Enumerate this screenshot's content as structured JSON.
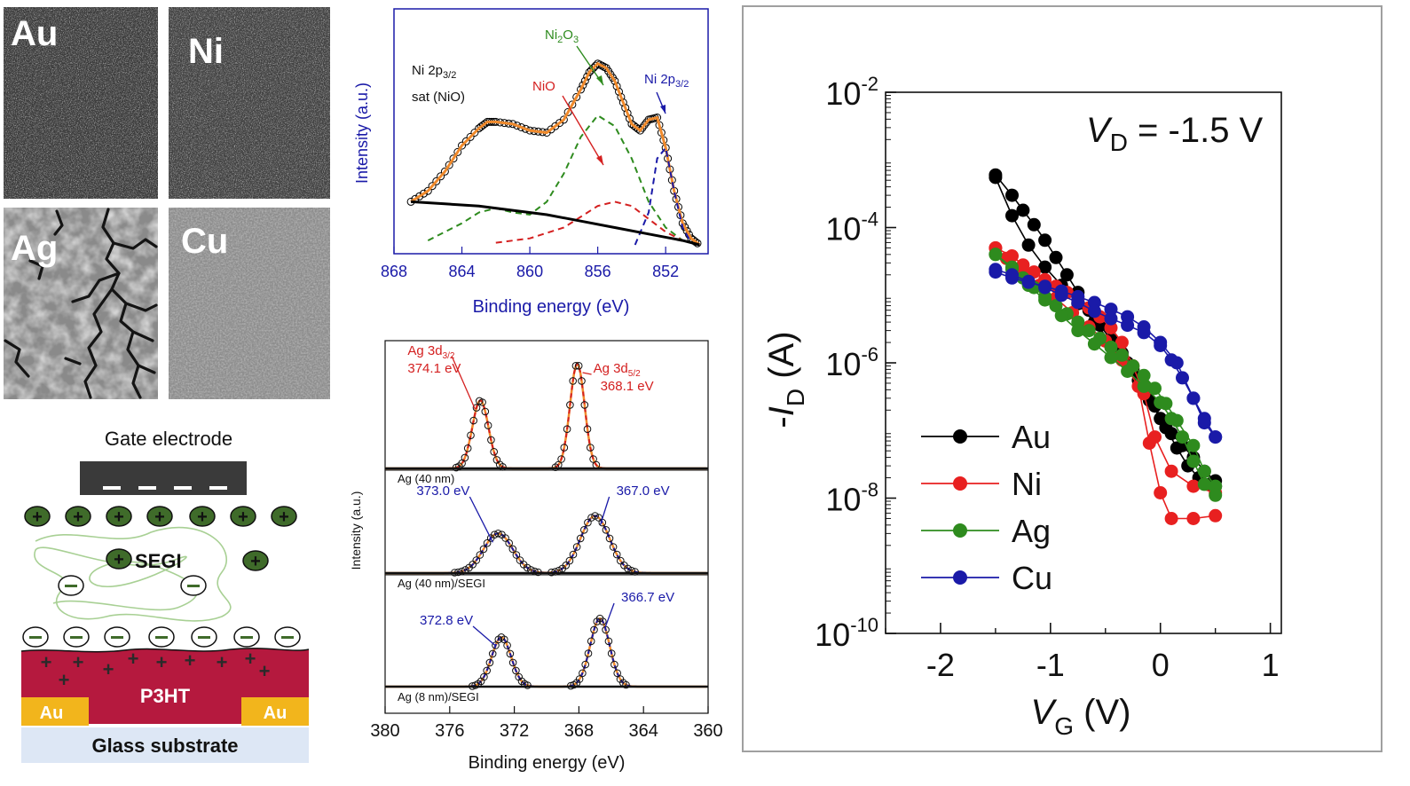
{
  "sem_panels": [
    {
      "label": "Au"
    },
    {
      "label": "Ni"
    },
    {
      "label": "Ag"
    },
    {
      "label": "Cu"
    }
  ],
  "device": {
    "gate_label": "Gate electrode",
    "segi_label": "SEGI",
    "semiconductor_label": "P3HT",
    "contact_left": "Au",
    "contact_right": "Au",
    "substrate_label": "Glass substrate",
    "plus_symbol": "+",
    "minus_symbol": "−",
    "colors": {
      "semiconductor": "#b5193e",
      "contact": "#f2b51c",
      "substrate": "#dde7f5",
      "cation": "#3f6b2a",
      "gate": "#3a3a3a"
    }
  },
  "chart_data": [
    {
      "type": "line",
      "title": "",
      "xlabel": "Binding energy (eV)",
      "ylabel": "Intensity (a.u.)",
      "x_reversed": true,
      "xlim": [
        868,
        849.5
      ],
      "xticks": [
        "868",
        "864",
        "860",
        "856",
        "852"
      ],
      "annotations": [
        {
          "text": "Ni 2p",
          "sub": "3/2",
          "color": "#000000"
        },
        {
          "text": "sat (NiO)",
          "color": "#000000"
        },
        {
          "text": "Ni",
          "sub": "2",
          "text2": "O",
          "sub2": "3",
          "color": "#2e8b1e"
        },
        {
          "text": "NiO",
          "color": "#d42020"
        },
        {
          "text": "Ni 2p",
          "sub": "3/2",
          "color": "#1a1aa8"
        }
      ],
      "series": [
        {
          "role": "data",
          "color": "#000000",
          "x": [
            867,
            866,
            865,
            864,
            863,
            862.5,
            862,
            861,
            860,
            859,
            858,
            857,
            856.5,
            856,
            855.5,
            855,
            854.5,
            854,
            853.5,
            853,
            852.5,
            852,
            851.5,
            851,
            850.5,
            850
          ],
          "y": [
            0.2,
            0.25,
            0.34,
            0.46,
            0.54,
            0.57,
            0.57,
            0.56,
            0.53,
            0.52,
            0.58,
            0.72,
            0.8,
            0.84,
            0.82,
            0.76,
            0.66,
            0.56,
            0.53,
            0.58,
            0.59,
            0.45,
            0.25,
            0.1,
            0.03,
            0.0
          ]
        },
        {
          "role": "fit",
          "color": "#f08a2c",
          "x": [
            867,
            866,
            865,
            864,
            863,
            862.5,
            862,
            861,
            860,
            859,
            858,
            857,
            856.5,
            856,
            855.5,
            855,
            854.5,
            854,
            853.5,
            853,
            852.5,
            852,
            851.5,
            851,
            850.5,
            850
          ],
          "y": [
            0.2,
            0.25,
            0.34,
            0.46,
            0.54,
            0.57,
            0.57,
            0.56,
            0.53,
            0.52,
            0.58,
            0.72,
            0.8,
            0.84,
            0.82,
            0.76,
            0.66,
            0.56,
            0.53,
            0.58,
            0.59,
            0.45,
            0.25,
            0.1,
            0.03,
            0.0
          ]
        },
        {
          "role": "component",
          "color": "#2e8b1e",
          "x": [
            866,
            864,
            863,
            862,
            861,
            860,
            859,
            858,
            857,
            856,
            855,
            854,
            853,
            852,
            851
          ],
          "y": [
            0.02,
            0.1,
            0.15,
            0.17,
            0.15,
            0.14,
            0.2,
            0.33,
            0.5,
            0.6,
            0.55,
            0.4,
            0.2,
            0.08,
            0.02
          ]
        },
        {
          "role": "component",
          "color": "#d42020",
          "x": [
            862,
            860,
            858,
            857,
            856,
            855,
            854,
            853,
            852,
            851,
            850
          ],
          "y": [
            0.01,
            0.03,
            0.08,
            0.13,
            0.18,
            0.2,
            0.18,
            0.12,
            0.06,
            0.02,
            0.0
          ]
        },
        {
          "role": "component",
          "color": "#1a1aa8",
          "x": [
            853.8,
            853,
            852.5,
            852,
            851.5,
            851,
            850.5
          ],
          "y": [
            0.0,
            0.15,
            0.4,
            0.45,
            0.25,
            0.08,
            0.01
          ]
        },
        {
          "role": "background",
          "color": "#000000",
          "x": [
            867,
            865,
            863,
            861,
            859,
            857,
            855,
            853,
            851,
            850
          ],
          "y": [
            0.2,
            0.19,
            0.18,
            0.16,
            0.14,
            0.11,
            0.08,
            0.05,
            0.02,
            0.0
          ]
        }
      ]
    },
    {
      "type": "line",
      "title": "",
      "xlabel": "Binding energy (eV)",
      "ylabel": "Intensity (a.u.)",
      "x_reversed": true,
      "xlim": [
        380,
        360
      ],
      "xticks": [
        "380",
        "376",
        "372",
        "368",
        "364",
        "360"
      ],
      "panels": [
        {
          "sample": "Ag (40 nm)",
          "peak_color": "#d42020",
          "peaks": [
            {
              "pos": 374.1,
              "height": 0.65,
              "width": 0.5,
              "label": "Ag 3d",
              "sub": "3/2",
              "energy": "374.1 eV"
            },
            {
              "pos": 368.1,
              "height": 1.0,
              "width": 0.45,
              "label": "Ag 3d",
              "sub": "5/2",
              "energy": "368.1 eV"
            }
          ]
        },
        {
          "sample": "Ag (40 nm)/SEGI",
          "peak_color": "#1a1aa8",
          "peaks": [
            {
              "pos": 373.0,
              "height": 0.52,
              "width": 0.9,
              "label": "",
              "energy": "373.0 eV"
            },
            {
              "pos": 367.0,
              "height": 0.75,
              "width": 0.9,
              "label": "",
              "energy": "367.0 eV"
            }
          ]
        },
        {
          "sample": "Ag (8 nm)/SEGI",
          "peak_color": "#1a1aa8",
          "peaks": [
            {
              "pos": 372.8,
              "height": 0.58,
              "width": 0.6,
              "label": "",
              "energy": "372.8 eV"
            },
            {
              "pos": 366.7,
              "height": 0.8,
              "width": 0.6,
              "label": "",
              "energy": "366.7 eV"
            }
          ]
        }
      ]
    },
    {
      "type": "line",
      "title": "",
      "xlabel_var": "V",
      "xlabel_sub": "G",
      "xlabel_unit": " (V)",
      "ylabel_prefix": "-",
      "ylabel_var": "I",
      "ylabel_sub": "D",
      "ylabel_unit": " (A)",
      "annotation_var": "V",
      "annotation_sub": "D",
      "annotation_rest": " = -1.5 V",
      "xlim": [
        -2.5,
        1.1
      ],
      "xticks": [
        "-2",
        "-1",
        "0",
        "1"
      ],
      "y_scale": "log",
      "ylim_exp": [
        -10,
        -2
      ],
      "ytick_base": "10",
      "ytick_exps": [
        "-10",
        "-8",
        "-6",
        "-4",
        "-2"
      ],
      "legend_position": "lower-left",
      "series": [
        {
          "name": "Au",
          "color": "#000000",
          "forward": {
            "x": [
              -1.5,
              -1.35,
              -1.25,
              -1.15,
              -1.05,
              -0.95,
              -0.85,
              -0.75,
              -0.65,
              -0.55,
              -0.45,
              -0.35,
              -0.25,
              -0.15,
              -0.05,
              0.05,
              0.15,
              0.25,
              0.35,
              0.45,
              0.5
            ],
            "y": [
              0.0006,
              0.0003,
              0.00018,
              0.00011,
              6.5e-05,
              3.6e-05,
              2e-05,
              1.1e-05,
              6e-06,
              3.6e-06,
              2.2e-06,
              1.4e-06,
              8e-07,
              4.5e-07,
              2.3e-07,
              1.1e-07,
              5.5e-08,
              3e-08,
              2e-08,
              1.6e-08,
              1.5e-08
            ]
          },
          "reverse": {
            "x": [
              0.5,
              0.4,
              0.3,
              0.2,
              0.1,
              0.0,
              -0.1,
              -0.2,
              -0.3,
              -0.45,
              -0.6,
              -0.75,
              -0.9,
              -1.05,
              -1.2,
              -1.35,
              -1.5
            ],
            "y": [
              1.8e-08,
              2.5e-08,
              4e-08,
              6e-08,
              9e-08,
              1.5e-07,
              2.8e-07,
              5.5e-07,
              1e-06,
              2e-06,
              4e-06,
              7.5e-06,
              1.4e-05,
              2.6e-05,
              5.5e-05,
              0.00015,
              0.00055
            ]
          }
        },
        {
          "name": "Ni",
          "color": "#e82020",
          "forward": {
            "x": [
              -1.5,
              -1.35,
              -1.25,
              -1.15,
              -1.05,
              -0.95,
              -0.85,
              -0.75,
              -0.65,
              -0.55,
              -0.45,
              -0.35,
              -0.25,
              -0.15,
              -0.05,
              0.1,
              0.3,
              0.5
            ],
            "y": [
              5e-05,
              3.8e-05,
              2.8e-05,
              2.2e-05,
              1.7e-05,
              1.35e-05,
              1.1e-05,
              8.5e-06,
              6.5e-06,
              4.8e-06,
              3.3e-06,
              2e-06,
              9e-07,
              3.5e-07,
              8e-08,
              2.5e-08,
              1.5e-08,
              1.2e-08
            ]
          },
          "reverse": {
            "x": [
              0.5,
              0.3,
              0.1,
              0.0,
              -0.1,
              -0.2,
              -0.35,
              -0.5,
              -0.65,
              -0.8,
              -0.95,
              -1.1,
              -1.25,
              -1.4,
              -1.5
            ],
            "y": [
              5.5e-09,
              5e-09,
              5e-09,
              1.2e-08,
              6.5e-08,
              4.5e-07,
              1.1e-06,
              2.1e-06,
              3.4e-06,
              5.5e-06,
              9e-06,
              1.4e-05,
              2.2e-05,
              3.5e-05,
              5e-05
            ]
          }
        },
        {
          "name": "Ag",
          "color": "#2e8b1e",
          "forward": {
            "x": [
              -1.5,
              -1.35,
              -1.25,
              -1.15,
              -1.05,
              -0.95,
              -0.85,
              -0.75,
              -0.65,
              -0.55,
              -0.45,
              -0.35,
              -0.25,
              -0.15,
              -0.05,
              0.05,
              0.15,
              0.3,
              0.4,
              0.5
            ],
            "y": [
              4e-05,
              2.6e-05,
              1.8e-05,
              1.3e-05,
              9.5e-06,
              7e-06,
              5.3e-06,
              4e-06,
              3e-06,
              2.3e-06,
              1.7e-06,
              1.3e-06,
              9e-07,
              6.5e-07,
              4.2e-07,
              2.5e-07,
              1.4e-07,
              6e-08,
              2.5e-08,
              1.5e-08
            ]
          },
          "reverse": {
            "x": [
              0.5,
              0.4,
              0.3,
              0.2,
              0.1,
              0.0,
              -0.15,
              -0.3,
              -0.45,
              -0.6,
              -0.75,
              -0.9,
              -1.05,
              -1.2,
              -1.35,
              -1.5
            ],
            "y": [
              1.1e-08,
              1.6e-08,
              3.5e-08,
              8e-08,
              1.5e-07,
              2.6e-07,
              4.5e-07,
              7.5e-07,
              1.2e-06,
              1.9e-06,
              3e-06,
              5e-06,
              8.5e-06,
              1.4e-05,
              2.4e-05,
              4e-05
            ]
          }
        },
        {
          "name": "Cu",
          "color": "#1a1aa8",
          "forward": {
            "x": [
              -1.5,
              -1.35,
              -1.2,
              -1.05,
              -0.9,
              -0.75,
              -0.6,
              -0.45,
              -0.3,
              -0.15,
              0.0,
              0.15,
              0.3,
              0.4,
              0.5
            ],
            "y": [
              2.2e-05,
              1.8e-05,
              1.55e-05,
              1.35e-05,
              1.15e-05,
              9.5e-06,
              7.8e-06,
              6.2e-06,
              4.8e-06,
              3.4e-06,
              2e-06,
              1e-06,
              3e-07,
              1.3e-07,
              8e-08
            ]
          },
          "reverse": {
            "x": [
              0.5,
              0.4,
              0.3,
              0.2,
              0.1,
              0.0,
              -0.15,
              -0.3,
              -0.45,
              -0.6,
              -0.75,
              -0.9,
              -1.05,
              -1.2,
              -1.35,
              -1.5
            ],
            "y": [
              8e-08,
              1.5e-07,
              3e-07,
              6e-07,
              1.1e-06,
              1.8e-06,
              2.8e-06,
              3.6e-06,
              4.5e-06,
              5.8e-06,
              7.8e-06,
              1e-05,
              1.3e-05,
              1.6e-05,
              2e-05,
              2.4e-05
            ]
          }
        }
      ]
    }
  ]
}
